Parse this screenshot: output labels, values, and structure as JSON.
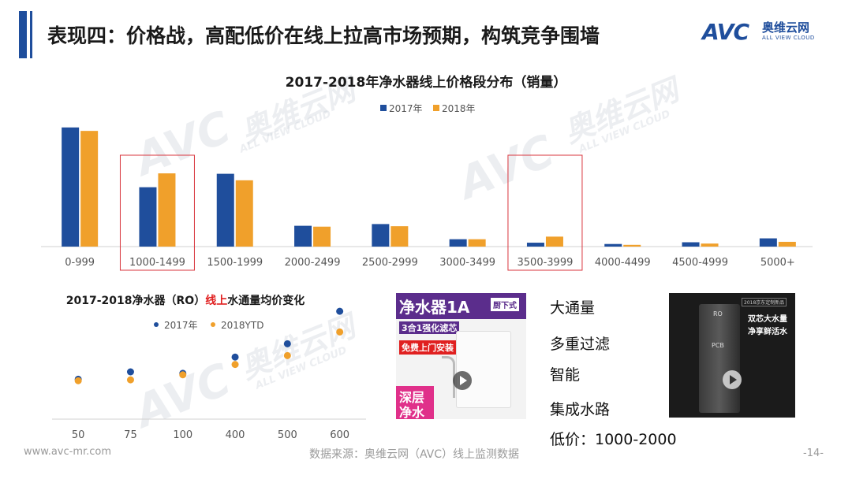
{
  "header": {
    "title": "表现四：价格战，高配低价在线上拉高市场预期，构筑竞争围墙",
    "logo_brand": "AVC",
    "logo_cn": "奥维云网",
    "logo_en": "ALL VIEW CLOUD"
  },
  "watermark": {
    "brand": "AVC",
    "cn": "奥维云网",
    "en": "ALL VIEW CLOUD"
  },
  "colors": {
    "series_2017": "#1f4e9c",
    "series_2018": "#f0a02b",
    "accent_bar": "#1f4e9c",
    "highlight_box": "#d9363e",
    "red_text": "#e02020"
  },
  "chart_data": [
    {
      "type": "bar",
      "title": "2017-2018年净水器线上价格段分布（销量）",
      "legend_position": "top-center",
      "categories": [
        "0-999",
        "1000-1499",
        "1500-1999",
        "2000-2499",
        "2500-2999",
        "3000-3499",
        "3500-3999",
        "4000-4499",
        "4500-4999",
        "5000+"
      ],
      "series": [
        {
          "name": "2017年",
          "values": [
            27.5,
            13.7,
            16.8,
            4.8,
            5.2,
            1.7,
            0.9,
            0.6,
            1.0,
            1.9
          ]
        },
        {
          "name": "2018年",
          "values": [
            26.7,
            16.9,
            15.3,
            4.6,
            4.7,
            1.7,
            2.3,
            0.4,
            0.7,
            1.1
          ]
        }
      ],
      "highlighted_categories": [
        "1000-1499",
        "3500-3999"
      ],
      "ylim": [
        0,
        30
      ],
      "y_axis_visible": false
    },
    {
      "type": "scatter",
      "title_parts": [
        "2017-2018净水器（RO）",
        "线上",
        "水通量均价变化"
      ],
      "legend_position": "top-center",
      "categories": [
        "50",
        "75",
        "100",
        "400",
        "500",
        "600"
      ],
      "series": [
        {
          "name": "2017年",
          "values": [
            1350,
            1600,
            1550,
            2100,
            2550,
            3650
          ]
        },
        {
          "name": "2018YTD",
          "values": [
            1300,
            1330,
            1500,
            1850,
            2150,
            2950
          ]
        }
      ],
      "ylim": [
        0,
        4000
      ],
      "y_axis_visible": false
    }
  ],
  "product1": {
    "title": "净水器1A",
    "tag": "厨下式",
    "subtitle": "3合1强化滤芯",
    "promo": "免费上门安装",
    "bottom_label": [
      "深层",
      "净水"
    ]
  },
  "product2": {
    "tag": "2018京东定制新品",
    "slogan": [
      "双芯大水量",
      "净享鲜活水"
    ],
    "panel_labels": [
      "RO",
      "PCB"
    ]
  },
  "features": [
    "大通量",
    "多重过滤",
    "智能",
    "集成水路",
    "低价：1000-2000"
  ],
  "footer": {
    "url": "www.avc-mr.com",
    "source": "数据来源：奥维云网（AVC）线上监测数据",
    "page": "-14-"
  }
}
